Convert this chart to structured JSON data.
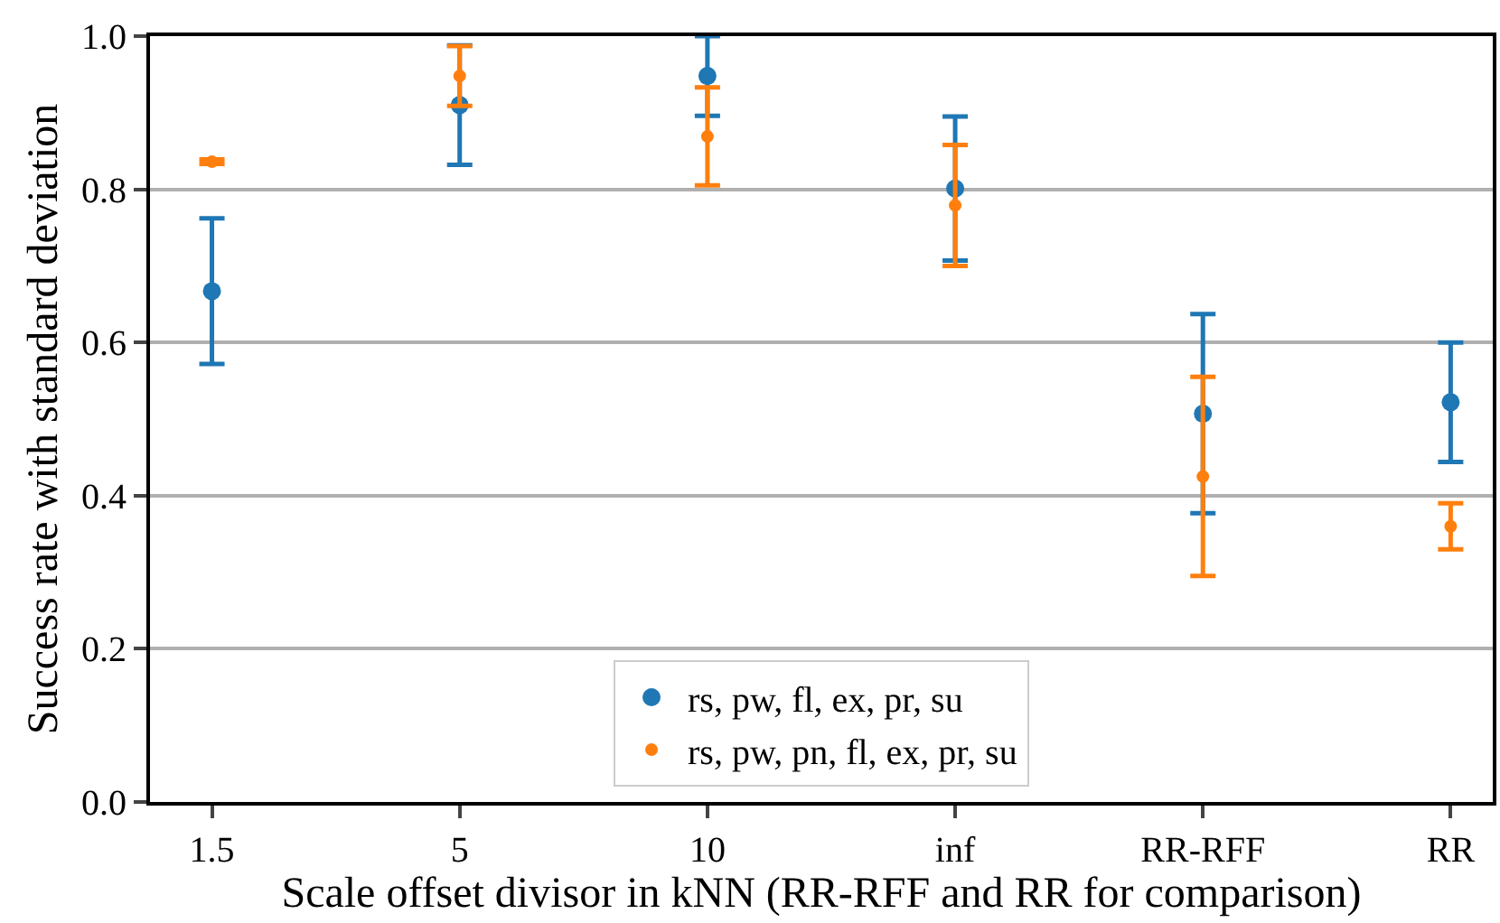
{
  "chart_data": {
    "type": "scatter",
    "xlabel": "Scale offset divisor in kNN (RR-RFF and RR for comparison)",
    "ylabel": "Success rate with standard deviation",
    "categories": [
      "1.5",
      "5",
      "10",
      "inf",
      "RR-RFF",
      "RR"
    ],
    "series": [
      {
        "name": "rs, pw, fl, ex, pr, su",
        "color": "#1f77b4",
        "values": [
          0.667,
          0.91,
          0.948,
          0.801,
          0.507,
          0.522
        ],
        "errors": [
          0.095,
          0.078,
          0.052,
          0.094,
          0.13,
          0.078
        ]
      },
      {
        "name": "rs, pw, pn, fl, ex, pr, su",
        "color": "#ff7f0e",
        "values": [
          0.836,
          0.948,
          0.869,
          0.779,
          0.425,
          0.36
        ],
        "errors": [
          0.003,
          0.039,
          0.064,
          0.079,
          0.13,
          0.03
        ]
      }
    ],
    "ylim": [
      0,
      1
    ],
    "yticks": [
      {
        "value": 0,
        "label": "0.0"
      },
      0.2,
      0.4,
      0.6,
      0.8,
      {
        "value": 1,
        "label": "1.0"
      }
    ],
    "grid": "y",
    "legend": "bottom",
    "marker": "circle"
  }
}
